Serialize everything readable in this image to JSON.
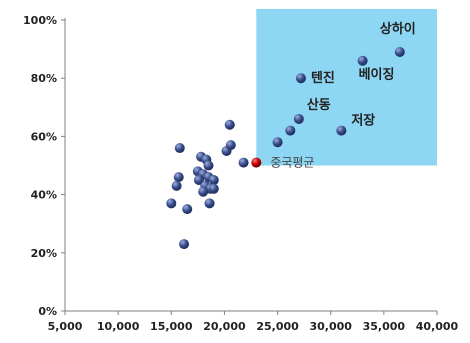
{
  "chart_data": {
    "type": "scatter",
    "title": "",
    "xlabel": "",
    "ylabel": "",
    "xlim": [
      5000,
      40000
    ],
    "ylim": [
      0,
      100
    ],
    "x_ticks": [
      5000,
      10000,
      15000,
      20000,
      25000,
      30000,
      35000,
      40000
    ],
    "x_tick_labels": [
      "5,000",
      "10,000",
      "15,000",
      "20,000",
      "25,000",
      "30,000",
      "35,000",
      "40,000"
    ],
    "y_ticks": [
      0,
      20,
      40,
      60,
      80,
      100
    ],
    "y_tick_labels": [
      "0%",
      "20%",
      "40%",
      "60%",
      "80%",
      "100%"
    ],
    "grid": false,
    "highlight_region": {
      "x": [
        23000,
        40000
      ],
      "y": [
        50,
        100
      ],
      "color": "#8DD6F4"
    },
    "average": {
      "label": "중국평균",
      "x": 23000,
      "y": 51,
      "color": "#C00000"
    },
    "point_color": "#3A4E8C",
    "labeled_points": [
      {
        "label": "상하이",
        "x": 36500,
        "y": 89
      },
      {
        "label": "베이징",
        "x": 33000,
        "y": 86
      },
      {
        "label": "텐진",
        "x": 27200,
        "y": 80
      },
      {
        "label": "산동",
        "x": 27000,
        "y": 66
      },
      {
        "label": "저장",
        "x": 31000,
        "y": 62
      }
    ],
    "points": [
      {
        "x": 20500,
        "y": 64
      },
      {
        "x": 15800,
        "y": 56
      },
      {
        "x": 15700,
        "y": 46
      },
      {
        "x": 15500,
        "y": 43
      },
      {
        "x": 15000,
        "y": 37
      },
      {
        "x": 16500,
        "y": 35
      },
      {
        "x": 16200,
        "y": 23
      },
      {
        "x": 17800,
        "y": 53
      },
      {
        "x": 18300,
        "y": 52
      },
      {
        "x": 18500,
        "y": 50
      },
      {
        "x": 17500,
        "y": 48
      },
      {
        "x": 18000,
        "y": 47
      },
      {
        "x": 17600,
        "y": 45
      },
      {
        "x": 18500,
        "y": 46
      },
      {
        "x": 19000,
        "y": 45
      },
      {
        "x": 18200,
        "y": 43
      },
      {
        "x": 18700,
        "y": 42
      },
      {
        "x": 18000,
        "y": 41
      },
      {
        "x": 19000,
        "y": 42
      },
      {
        "x": 18600,
        "y": 37
      },
      {
        "x": 20200,
        "y": 55
      },
      {
        "x": 20600,
        "y": 57
      },
      {
        "x": 21800,
        "y": 51
      },
      {
        "x": 25000,
        "y": 58
      },
      {
        "x": 26200,
        "y": 62
      }
    ]
  }
}
